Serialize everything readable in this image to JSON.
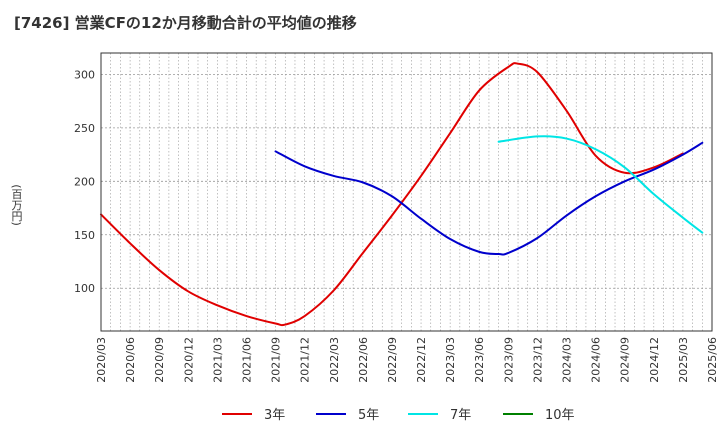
{
  "chart_data": {
    "type": "line",
    "title": "[7426]  営業CFの12か月移動合計の平均値の推移",
    "ylabel": "(百万円)",
    "xlabel": "",
    "x_ticks": [
      "2020/03",
      "2020/06",
      "2020/09",
      "2020/12",
      "2021/03",
      "2021/06",
      "2021/09",
      "2021/12",
      "2022/03",
      "2022/06",
      "2022/09",
      "2022/12",
      "2023/03",
      "2023/06",
      "2023/09",
      "2023/12",
      "2024/03",
      "2024/06",
      "2024/09",
      "2024/12",
      "2025/03",
      "2025/06"
    ],
    "y_ticks": [
      100,
      150,
      200,
      250,
      300
    ],
    "ylim": [
      60,
      320
    ],
    "grid": true,
    "legend_position": "bottom",
    "series": [
      {
        "name": "3年",
        "color": "#e00000",
        "points": [
          [
            "2020/03",
            169
          ],
          [
            "2020/06",
            142
          ],
          [
            "2020/09",
            117
          ],
          [
            "2020/12",
            97
          ],
          [
            "2021/03",
            84
          ],
          [
            "2021/06",
            74
          ],
          [
            "2021/09",
            67
          ],
          [
            "2021/10",
            66
          ],
          [
            "2021/12",
            74
          ],
          [
            "2022/03",
            98
          ],
          [
            "2022/06",
            133
          ],
          [
            "2022/09",
            168
          ],
          [
            "2022/12",
            205
          ],
          [
            "2023/03",
            245
          ],
          [
            "2023/06",
            285
          ],
          [
            "2023/09",
            307
          ],
          [
            "2023/10",
            310
          ],
          [
            "2023/12",
            302
          ],
          [
            "2024/03",
            266
          ],
          [
            "2024/06",
            224
          ],
          [
            "2024/09",
            208
          ],
          [
            "2024/12",
            213
          ],
          [
            "2025/03",
            226
          ]
        ]
      },
      {
        "name": "5年",
        "color": "#0000cc",
        "points": [
          [
            "2021/09",
            228
          ],
          [
            "2021/12",
            214
          ],
          [
            "2022/03",
            205
          ],
          [
            "2022/06",
            199
          ],
          [
            "2022/09",
            186
          ],
          [
            "2022/12",
            165
          ],
          [
            "2023/03",
            146
          ],
          [
            "2023/06",
            134
          ],
          [
            "2023/08",
            132
          ],
          [
            "2023/09",
            133
          ],
          [
            "2023/12",
            147
          ],
          [
            "2024/03",
            168
          ],
          [
            "2024/06",
            186
          ],
          [
            "2024/09",
            200
          ],
          [
            "2024/12",
            211
          ],
          [
            "2025/03",
            225
          ],
          [
            "2025/05",
            236
          ]
        ]
      },
      {
        "name": "7年",
        "color": "#00e5e5",
        "points": [
          [
            "2023/08",
            237
          ],
          [
            "2023/12",
            242
          ],
          [
            "2024/03",
            240
          ],
          [
            "2024/06",
            230
          ],
          [
            "2024/09",
            213
          ],
          [
            "2024/12",
            188
          ],
          [
            "2025/03",
            166
          ],
          [
            "2025/05",
            152
          ]
        ]
      },
      {
        "name": "10年",
        "color": "#008000",
        "points": []
      }
    ]
  }
}
